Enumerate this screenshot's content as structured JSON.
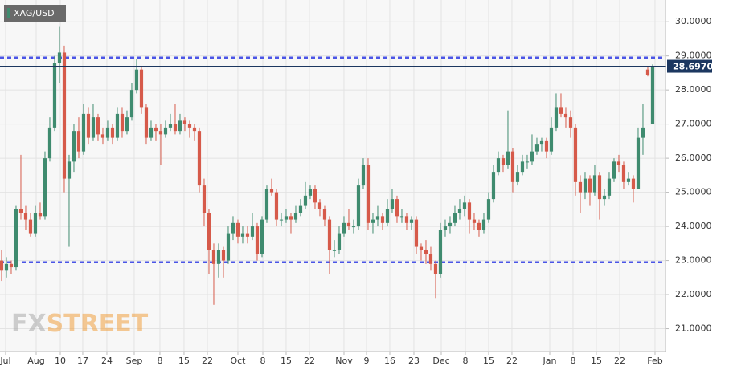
{
  "chart_data": {
    "type": "candlestick",
    "title": "XAG/USD",
    "watermark_fx": "FX",
    "watermark_street": "STREET",
    "up_color": "#3f8b6f",
    "down_color": "#d65a4a",
    "grid": true,
    "levels": [
      28.95,
      22.95
    ],
    "level_color": "#4b55e6",
    "last_price": {
      "value": 28.697,
      "label": "28.69700"
    },
    "ylim": [
      20.33,
      30.64
    ],
    "yticks": [
      {
        "value": 21,
        "label": "21.0000"
      },
      {
        "value": 22,
        "label": "22.0000"
      },
      {
        "value": 23,
        "label": "23.0000"
      },
      {
        "value": 24,
        "label": "24.0000"
      },
      {
        "value": 25,
        "label": "25.0000"
      },
      {
        "value": 26,
        "label": "26.0000"
      },
      {
        "value": 27,
        "label": "27.0000"
      },
      {
        "value": 28,
        "label": "28.0000"
      },
      {
        "value": 29,
        "label": "29.0000"
      },
      {
        "value": 30,
        "label": "30.0000"
      }
    ],
    "xlim": [
      -0.33,
      137.67
    ],
    "xticks": [
      {
        "value": 0.83,
        "label": "Jul"
      },
      {
        "value": 7.17,
        "label": "Aug"
      },
      {
        "value": 12.17,
        "label": "10"
      },
      {
        "value": 16.83,
        "label": "17"
      },
      {
        "value": 21.83,
        "label": "24"
      },
      {
        "value": 27.5,
        "label": "Sep"
      },
      {
        "value": 32.83,
        "label": "8"
      },
      {
        "value": 37.83,
        "label": "15"
      },
      {
        "value": 42.67,
        "label": "22"
      },
      {
        "value": 49,
        "label": "Oct"
      },
      {
        "value": 54.17,
        "label": "8"
      },
      {
        "value": 59,
        "label": "15"
      },
      {
        "value": 63.83,
        "label": "22"
      },
      {
        "value": 71,
        "label": "Nov"
      },
      {
        "value": 75.67,
        "label": "9"
      },
      {
        "value": 80.5,
        "label": "16"
      },
      {
        "value": 85.5,
        "label": "23"
      },
      {
        "value": 91.17,
        "label": "Dec"
      },
      {
        "value": 96.17,
        "label": "8"
      },
      {
        "value": 101,
        "label": "15"
      },
      {
        "value": 105.83,
        "label": "22"
      },
      {
        "value": 113.67,
        "label": "Jan"
      },
      {
        "value": 118.5,
        "label": "8"
      },
      {
        "value": 123.33,
        "label": "15"
      },
      {
        "value": 128.17,
        "label": "22"
      },
      {
        "value": 135.5,
        "label": "Feb"
      }
    ],
    "series": [
      {
        "name": "XAG/USD",
        "values": [
          [
            23.0,
            23.3,
            22.4,
            22.7
          ],
          [
            22.7,
            23.1,
            22.5,
            22.9
          ],
          [
            22.9,
            23.0,
            22.6,
            22.8
          ],
          [
            22.8,
            24.6,
            22.7,
            24.5
          ],
          [
            24.5,
            26.1,
            24.2,
            24.4
          ],
          [
            24.4,
            24.6,
            23.9,
            24.2
          ],
          [
            24.2,
            24.4,
            23.7,
            23.8
          ],
          [
            23.8,
            24.6,
            23.7,
            24.4
          ],
          [
            24.4,
            24.7,
            24.2,
            24.3
          ],
          [
            24.3,
            26.2,
            24.2,
            26.0
          ],
          [
            26.0,
            27.2,
            25.9,
            26.9
          ],
          [
            26.9,
            29.0,
            26.8,
            28.8
          ],
          [
            28.8,
            29.85,
            28.2,
            29.1
          ],
          [
            29.1,
            29.3,
            25.0,
            25.4
          ],
          [
            25.4,
            26.1,
            23.4,
            25.9
          ],
          [
            25.9,
            27.0,
            25.6,
            26.8
          ],
          [
            26.8,
            27.2,
            26.0,
            26.2
          ],
          [
            26.2,
            27.6,
            26.1,
            27.3
          ],
          [
            27.3,
            27.5,
            26.4,
            26.6
          ],
          [
            26.6,
            27.6,
            26.5,
            27.2
          ],
          [
            27.2,
            27.3,
            26.5,
            26.7
          ],
          [
            26.7,
            26.9,
            26.4,
            26.6
          ],
          [
            26.6,
            27.1,
            26.5,
            26.9
          ],
          [
            26.9,
            27.0,
            26.4,
            26.6
          ],
          [
            26.6,
            27.5,
            26.5,
            27.3
          ],
          [
            27.3,
            27.5,
            26.6,
            26.8
          ],
          [
            26.8,
            27.4,
            26.7,
            27.2
          ],
          [
            27.2,
            28.2,
            27.1,
            28.0
          ],
          [
            28.0,
            28.9,
            27.9,
            28.6
          ],
          [
            28.6,
            28.7,
            27.3,
            27.5
          ],
          [
            27.5,
            27.6,
            26.4,
            26.6
          ],
          [
            26.6,
            27.1,
            26.5,
            26.9
          ],
          [
            26.9,
            27.0,
            26.5,
            26.8
          ],
          [
            26.8,
            27.0,
            25.8,
            26.7
          ],
          [
            26.7,
            27.1,
            26.6,
            26.9
          ],
          [
            26.9,
            27.3,
            26.8,
            27.0
          ],
          [
            27.0,
            27.6,
            26.7,
            26.8
          ],
          [
            26.8,
            27.3,
            26.7,
            27.1
          ],
          [
            27.1,
            27.2,
            26.8,
            27.0
          ],
          [
            27.0,
            27.1,
            26.6,
            26.9
          ],
          [
            26.9,
            27.0,
            26.5,
            26.8
          ],
          [
            26.8,
            26.9,
            25.0,
            25.2
          ],
          [
            25.2,
            25.4,
            24.0,
            24.4
          ],
          [
            24.4,
            24.5,
            22.6,
            23.3
          ],
          [
            23.3,
            23.5,
            21.7,
            22.9
          ],
          [
            22.9,
            23.5,
            22.5,
            23.3
          ],
          [
            23.3,
            23.4,
            22.5,
            23.0
          ],
          [
            23.0,
            24.0,
            22.9,
            23.8
          ],
          [
            23.8,
            24.3,
            23.6,
            24.1
          ],
          [
            24.1,
            24.2,
            23.5,
            23.7
          ],
          [
            23.7,
            24.0,
            23.5,
            23.8
          ],
          [
            23.8,
            24.0,
            23.5,
            23.7
          ],
          [
            23.7,
            24.4,
            23.6,
            24.0
          ],
          [
            24.0,
            24.1,
            23.0,
            23.2
          ],
          [
            23.2,
            24.3,
            23.1,
            24.2
          ],
          [
            24.2,
            25.2,
            24.1,
            25.1
          ],
          [
            25.1,
            25.4,
            24.9,
            25.0
          ],
          [
            25.0,
            25.1,
            24.0,
            24.2
          ],
          [
            24.2,
            24.4,
            24.0,
            24.2
          ],
          [
            24.2,
            24.5,
            24.1,
            24.3
          ],
          [
            24.3,
            24.4,
            23.8,
            24.2
          ],
          [
            24.2,
            24.6,
            24.1,
            24.4
          ],
          [
            24.4,
            24.8,
            24.3,
            24.6
          ],
          [
            24.6,
            25.3,
            24.5,
            24.9
          ],
          [
            24.9,
            25.2,
            24.8,
            25.1
          ],
          [
            25.1,
            25.2,
            24.5,
            24.7
          ],
          [
            24.7,
            24.8,
            24.3,
            24.5
          ],
          [
            24.5,
            24.6,
            24.0,
            24.2
          ],
          [
            24.2,
            24.3,
            22.6,
            23.3
          ],
          [
            23.3,
            23.6,
            23.1,
            23.3
          ],
          [
            23.3,
            24.0,
            23.2,
            23.8
          ],
          [
            23.8,
            24.3,
            23.7,
            24.1
          ],
          [
            24.1,
            24.5,
            23.9,
            24.0
          ],
          [
            24.0,
            24.2,
            23.8,
            24.0
          ],
          [
            24.0,
            25.4,
            23.9,
            25.2
          ],
          [
            25.2,
            26.0,
            25.1,
            25.8
          ],
          [
            25.8,
            26.0,
            23.9,
            24.1
          ],
          [
            24.1,
            24.4,
            23.8,
            24.2
          ],
          [
            24.2,
            24.6,
            24.0,
            24.3
          ],
          [
            24.3,
            24.4,
            23.9,
            24.1
          ],
          [
            24.1,
            24.8,
            24.0,
            24.5
          ],
          [
            24.5,
            25.1,
            24.4,
            24.8
          ],
          [
            24.8,
            24.9,
            24.1,
            24.3
          ],
          [
            24.3,
            24.5,
            24.1,
            24.3
          ],
          [
            24.3,
            24.4,
            23.9,
            24.1
          ],
          [
            24.1,
            24.3,
            23.9,
            24.2
          ],
          [
            24.2,
            24.3,
            23.2,
            23.4
          ],
          [
            23.4,
            23.5,
            23.0,
            23.3
          ],
          [
            23.3,
            23.6,
            22.9,
            23.2
          ],
          [
            23.2,
            23.4,
            22.7,
            22.9
          ],
          [
            22.9,
            23.0,
            21.9,
            22.6
          ],
          [
            22.6,
            24.1,
            22.5,
            23.9
          ],
          [
            23.9,
            24.2,
            23.7,
            24.0
          ],
          [
            24.0,
            24.3,
            23.8,
            24.1
          ],
          [
            24.1,
            24.6,
            24.0,
            24.4
          ],
          [
            24.4,
            24.8,
            24.2,
            24.5
          ],
          [
            24.5,
            24.9,
            24.3,
            24.7
          ],
          [
            24.7,
            24.8,
            23.8,
            24.2
          ],
          [
            24.2,
            24.4,
            23.9,
            24.1
          ],
          [
            24.1,
            24.2,
            23.7,
            23.9
          ],
          [
            23.9,
            24.4,
            23.8,
            24.2
          ],
          [
            24.2,
            25.0,
            24.1,
            24.8
          ],
          [
            24.8,
            25.8,
            24.7,
            25.6
          ],
          [
            25.6,
            26.2,
            25.5,
            26.0
          ],
          [
            26.0,
            26.1,
            25.6,
            25.8
          ],
          [
            25.8,
            27.4,
            25.7,
            26.2
          ],
          [
            26.2,
            26.3,
            25.0,
            25.3
          ],
          [
            25.3,
            25.8,
            25.2,
            25.6
          ],
          [
            25.6,
            26.1,
            25.5,
            25.9
          ],
          [
            25.9,
            26.1,
            25.7,
            25.9
          ],
          [
            25.9,
            26.7,
            25.8,
            26.2
          ],
          [
            26.2,
            26.6,
            26.1,
            26.4
          ],
          [
            26.4,
            26.6,
            26.2,
            26.5
          ],
          [
            26.5,
            26.6,
            26.0,
            26.2
          ],
          [
            26.2,
            27.2,
            26.1,
            26.9
          ],
          [
            26.9,
            27.9,
            26.8,
            27.5
          ],
          [
            27.5,
            27.9,
            27.2,
            27.3
          ],
          [
            27.3,
            27.5,
            26.9,
            27.2
          ],
          [
            27.2,
            27.4,
            26.6,
            26.9
          ],
          [
            26.9,
            27.0,
            24.9,
            25.3
          ],
          [
            25.3,
            25.5,
            24.4,
            25.0
          ],
          [
            25.0,
            25.6,
            24.8,
            25.4
          ],
          [
            25.4,
            25.5,
            24.6,
            25.0
          ],
          [
            25.0,
            25.8,
            24.9,
            25.5
          ],
          [
            25.5,
            25.6,
            24.2,
            24.8
          ],
          [
            24.8,
            25.1,
            24.6,
            24.9
          ],
          [
            24.9,
            25.6,
            24.8,
            25.4
          ],
          [
            25.4,
            26.0,
            25.3,
            25.9
          ],
          [
            25.9,
            26.1,
            25.6,
            25.8
          ],
          [
            25.8,
            25.9,
            25.1,
            25.3
          ],
          [
            25.3,
            25.6,
            25.2,
            25.4
          ],
          [
            25.4,
            25.5,
            24.7,
            25.1
          ],
          [
            25.1,
            26.9,
            25.1,
            26.6
          ],
          [
            26.6,
            27.6,
            26.1,
            26.9
          ],
          [
            28.6,
            28.7,
            28.4,
            28.45
          ],
          [
            27.0,
            28.75,
            27.0,
            28.697
          ]
        ]
      }
    ]
  }
}
